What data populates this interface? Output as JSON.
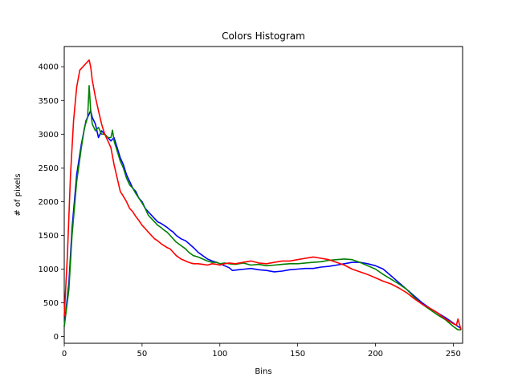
{
  "chart_data": {
    "type": "line",
    "title": "Colors Histogram",
    "xlabel": "Bins",
    "ylabel": "# of pixels",
    "xlim": [
      0,
      256
    ],
    "ylim": [
      -100,
      4300
    ],
    "xticks": [
      0,
      50,
      100,
      150,
      200,
      250
    ],
    "yticks": [
      0,
      500,
      1000,
      1500,
      2000,
      2500,
      3000,
      3500,
      4000
    ],
    "grid": false,
    "legend": "none",
    "series": [
      {
        "color": "#0000ff",
        "points": [
          [
            0,
            150
          ],
          [
            3,
            800
          ],
          [
            5,
            1600
          ],
          [
            8,
            2400
          ],
          [
            11,
            2850
          ],
          [
            14,
            3200
          ],
          [
            16,
            3300
          ],
          [
            17,
            3350
          ],
          [
            18,
            3250
          ],
          [
            20,
            3150
          ],
          [
            21,
            3050
          ],
          [
            22,
            2950
          ],
          [
            24,
            3050
          ],
          [
            26,
            3000
          ],
          [
            28,
            2950
          ],
          [
            30,
            2900
          ],
          [
            32,
            2950
          ],
          [
            34,
            2800
          ],
          [
            36,
            2650
          ],
          [
            38,
            2550
          ],
          [
            40,
            2400
          ],
          [
            42,
            2300
          ],
          [
            44,
            2200
          ],
          [
            46,
            2150
          ],
          [
            48,
            2050
          ],
          [
            50,
            2000
          ],
          [
            52,
            1900
          ],
          [
            54,
            1850
          ],
          [
            56,
            1800
          ],
          [
            58,
            1750
          ],
          [
            60,
            1700
          ],
          [
            62,
            1680
          ],
          [
            64,
            1650
          ],
          [
            66,
            1620
          ],
          [
            68,
            1580
          ],
          [
            70,
            1550
          ],
          [
            72,
            1500
          ],
          [
            75,
            1450
          ],
          [
            78,
            1420
          ],
          [
            80,
            1380
          ],
          [
            83,
            1320
          ],
          [
            86,
            1250
          ],
          [
            89,
            1200
          ],
          [
            92,
            1150
          ],
          [
            95,
            1120
          ],
          [
            98,
            1100
          ],
          [
            100,
            1080
          ],
          [
            103,
            1050
          ],
          [
            106,
            1020
          ],
          [
            108,
            980
          ],
          [
            112,
            990
          ],
          [
            116,
            1000
          ],
          [
            120,
            1010
          ],
          [
            125,
            990
          ],
          [
            130,
            980
          ],
          [
            135,
            960
          ],
          [
            140,
            970
          ],
          [
            145,
            990
          ],
          [
            150,
            1000
          ],
          [
            155,
            1010
          ],
          [
            160,
            1010
          ],
          [
            165,
            1030
          ],
          [
            170,
            1040
          ],
          [
            175,
            1060
          ],
          [
            180,
            1080
          ],
          [
            185,
            1100
          ],
          [
            190,
            1100
          ],
          [
            195,
            1080
          ],
          [
            200,
            1050
          ],
          [
            205,
            1000
          ],
          [
            210,
            900
          ],
          [
            215,
            800
          ],
          [
            220,
            700
          ],
          [
            225,
            600
          ],
          [
            230,
            500
          ],
          [
            235,
            420
          ],
          [
            240,
            350
          ],
          [
            245,
            280
          ],
          [
            250,
            200
          ],
          [
            253,
            150
          ],
          [
            255,
            120
          ]
        ]
      },
      {
        "color": "#008000",
        "points": [
          [
            0,
            150
          ],
          [
            3,
            700
          ],
          [
            5,
            1500
          ],
          [
            8,
            2300
          ],
          [
            11,
            2800
          ],
          [
            13,
            3100
          ],
          [
            15,
            3250
          ],
          [
            16,
            3720
          ],
          [
            17,
            3350
          ],
          [
            18,
            3150
          ],
          [
            20,
            3050
          ],
          [
            22,
            3100
          ],
          [
            24,
            3000
          ],
          [
            26,
            3000
          ],
          [
            28,
            2950
          ],
          [
            30,
            2950
          ],
          [
            31,
            3060
          ],
          [
            32,
            2900
          ],
          [
            34,
            2750
          ],
          [
            36,
            2600
          ],
          [
            38,
            2500
          ],
          [
            40,
            2350
          ],
          [
            42,
            2250
          ],
          [
            44,
            2200
          ],
          [
            46,
            2120
          ],
          [
            48,
            2050
          ],
          [
            50,
            1980
          ],
          [
            52,
            1900
          ],
          [
            54,
            1800
          ],
          [
            56,
            1750
          ],
          [
            58,
            1700
          ],
          [
            60,
            1650
          ],
          [
            62,
            1620
          ],
          [
            64,
            1580
          ],
          [
            66,
            1550
          ],
          [
            68,
            1500
          ],
          [
            70,
            1450
          ],
          [
            72,
            1400
          ],
          [
            75,
            1350
          ],
          [
            78,
            1300
          ],
          [
            80,
            1250
          ],
          [
            83,
            1200
          ],
          [
            86,
            1180
          ],
          [
            89,
            1150
          ],
          [
            92,
            1120
          ],
          [
            95,
            1100
          ],
          [
            98,
            1100
          ],
          [
            100,
            1080
          ],
          [
            103,
            1090
          ],
          [
            106,
            1080
          ],
          [
            110,
            1070
          ],
          [
            115,
            1090
          ],
          [
            120,
            1060
          ],
          [
            125,
            1070
          ],
          [
            130,
            1050
          ],
          [
            135,
            1060
          ],
          [
            140,
            1070
          ],
          [
            145,
            1080
          ],
          [
            150,
            1080
          ],
          [
            155,
            1090
          ],
          [
            160,
            1100
          ],
          [
            165,
            1110
          ],
          [
            170,
            1130
          ],
          [
            175,
            1140
          ],
          [
            180,
            1150
          ],
          [
            185,
            1140
          ],
          [
            190,
            1100
          ],
          [
            195,
            1050
          ],
          [
            200,
            1000
          ],
          [
            205,
            920
          ],
          [
            210,
            850
          ],
          [
            215,
            780
          ],
          [
            220,
            700
          ],
          [
            225,
            580
          ],
          [
            230,
            480
          ],
          [
            235,
            400
          ],
          [
            240,
            320
          ],
          [
            245,
            250
          ],
          [
            250,
            150
          ],
          [
            253,
            100
          ],
          [
            255,
            100
          ]
        ]
      },
      {
        "color": "#ff0000",
        "points": [
          [
            0,
            300
          ],
          [
            2,
            1200
          ],
          [
            4,
            2400
          ],
          [
            6,
            3200
          ],
          [
            8,
            3700
          ],
          [
            10,
            3950
          ],
          [
            12,
            4000
          ],
          [
            14,
            4050
          ],
          [
            16,
            4100
          ],
          [
            17,
            4000
          ],
          [
            18,
            3800
          ],
          [
            20,
            3550
          ],
          [
            22,
            3350
          ],
          [
            24,
            3150
          ],
          [
            26,
            3000
          ],
          [
            28,
            2900
          ],
          [
            30,
            2800
          ],
          [
            32,
            2550
          ],
          [
            34,
            2350
          ],
          [
            36,
            2150
          ],
          [
            38,
            2080
          ],
          [
            40,
            2000
          ],
          [
            42,
            1900
          ],
          [
            44,
            1850
          ],
          [
            46,
            1780
          ],
          [
            48,
            1720
          ],
          [
            50,
            1650
          ],
          [
            52,
            1600
          ],
          [
            54,
            1550
          ],
          [
            56,
            1500
          ],
          [
            58,
            1450
          ],
          [
            60,
            1420
          ],
          [
            62,
            1380
          ],
          [
            64,
            1350
          ],
          [
            66,
            1320
          ],
          [
            68,
            1300
          ],
          [
            70,
            1250
          ],
          [
            72,
            1200
          ],
          [
            75,
            1150
          ],
          [
            78,
            1120
          ],
          [
            80,
            1100
          ],
          [
            83,
            1080
          ],
          [
            86,
            1080
          ],
          [
            89,
            1070
          ],
          [
            92,
            1060
          ],
          [
            95,
            1080
          ],
          [
            98,
            1070
          ],
          [
            100,
            1060
          ],
          [
            103,
            1080
          ],
          [
            106,
            1090
          ],
          [
            110,
            1080
          ],
          [
            115,
            1100
          ],
          [
            120,
            1120
          ],
          [
            125,
            1090
          ],
          [
            130,
            1080
          ],
          [
            135,
            1100
          ],
          [
            140,
            1120
          ],
          [
            145,
            1120
          ],
          [
            150,
            1140
          ],
          [
            155,
            1160
          ],
          [
            160,
            1180
          ],
          [
            165,
            1160
          ],
          [
            170,
            1140
          ],
          [
            175,
            1100
          ],
          [
            180,
            1060
          ],
          [
            185,
            1000
          ],
          [
            190,
            960
          ],
          [
            195,
            920
          ],
          [
            200,
            870
          ],
          [
            205,
            820
          ],
          [
            210,
            780
          ],
          [
            215,
            720
          ],
          [
            220,
            650
          ],
          [
            225,
            560
          ],
          [
            230,
            480
          ],
          [
            235,
            420
          ],
          [
            240,
            350
          ],
          [
            245,
            260
          ],
          [
            250,
            190
          ],
          [
            252,
            170
          ],
          [
            253,
            260
          ],
          [
            254,
            180
          ],
          [
            255,
            100
          ]
        ]
      }
    ]
  }
}
